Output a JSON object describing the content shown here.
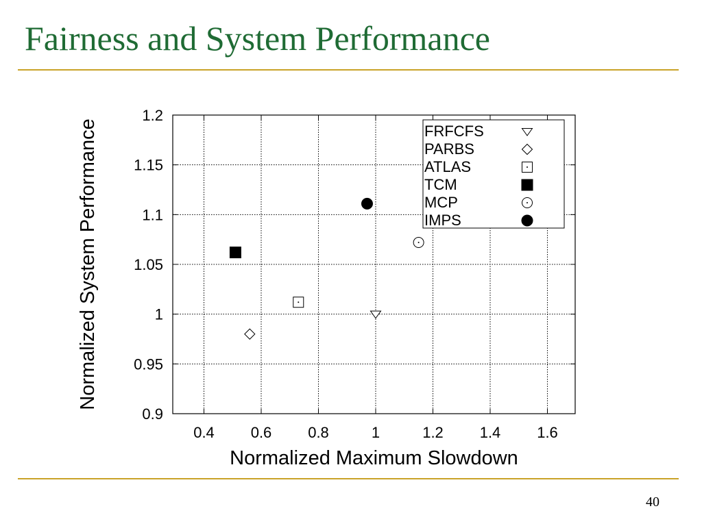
{
  "slide": {
    "title": "Fairness and System Performance",
    "page_number": "40"
  },
  "colors": {
    "title": "#1f6b34",
    "rule": "#c9a227",
    "grid": "#000000"
  },
  "chart_data": {
    "type": "scatter",
    "title": "",
    "xlabel": "Normalized Maximum Slowdown",
    "ylabel": "Normalized System Performance",
    "xlim": [
      0.3,
      1.7
    ],
    "ylim": [
      0.9,
      1.2
    ],
    "xticks": [
      0.4,
      0.6,
      0.8,
      1,
      1.2,
      1.4,
      1.6
    ],
    "xtick_labels": [
      "0.4",
      "0.6",
      "0.8",
      "1",
      "1.2",
      "1.4",
      "1.6"
    ],
    "yticks": [
      0.9,
      0.95,
      1,
      1.05,
      1.1,
      1.15,
      1.2
    ],
    "ytick_labels": [
      "0.9",
      "0.95",
      "1",
      "1.05",
      "1.1",
      "1.15",
      "1.2"
    ],
    "grid": true,
    "grid_style": "dotted",
    "legend_position": "top-right",
    "series": [
      {
        "name": "FRFCFS",
        "marker": "triangle-down-open",
        "x": 1.0,
        "y": 1.0
      },
      {
        "name": "PARBS",
        "marker": "diamond-open",
        "x": 0.56,
        "y": 0.98
      },
      {
        "name": "ATLAS",
        "marker": "square-open-dot",
        "x": 0.73,
        "y": 1.012
      },
      {
        "name": "TCM",
        "marker": "square-filled",
        "x": 0.51,
        "y": 1.062
      },
      {
        "name": "MCP",
        "marker": "circle-open-dot",
        "x": 1.15,
        "y": 1.072
      },
      {
        "name": "IMPS",
        "marker": "circle-filled",
        "x": 0.97,
        "y": 1.111
      }
    ]
  }
}
